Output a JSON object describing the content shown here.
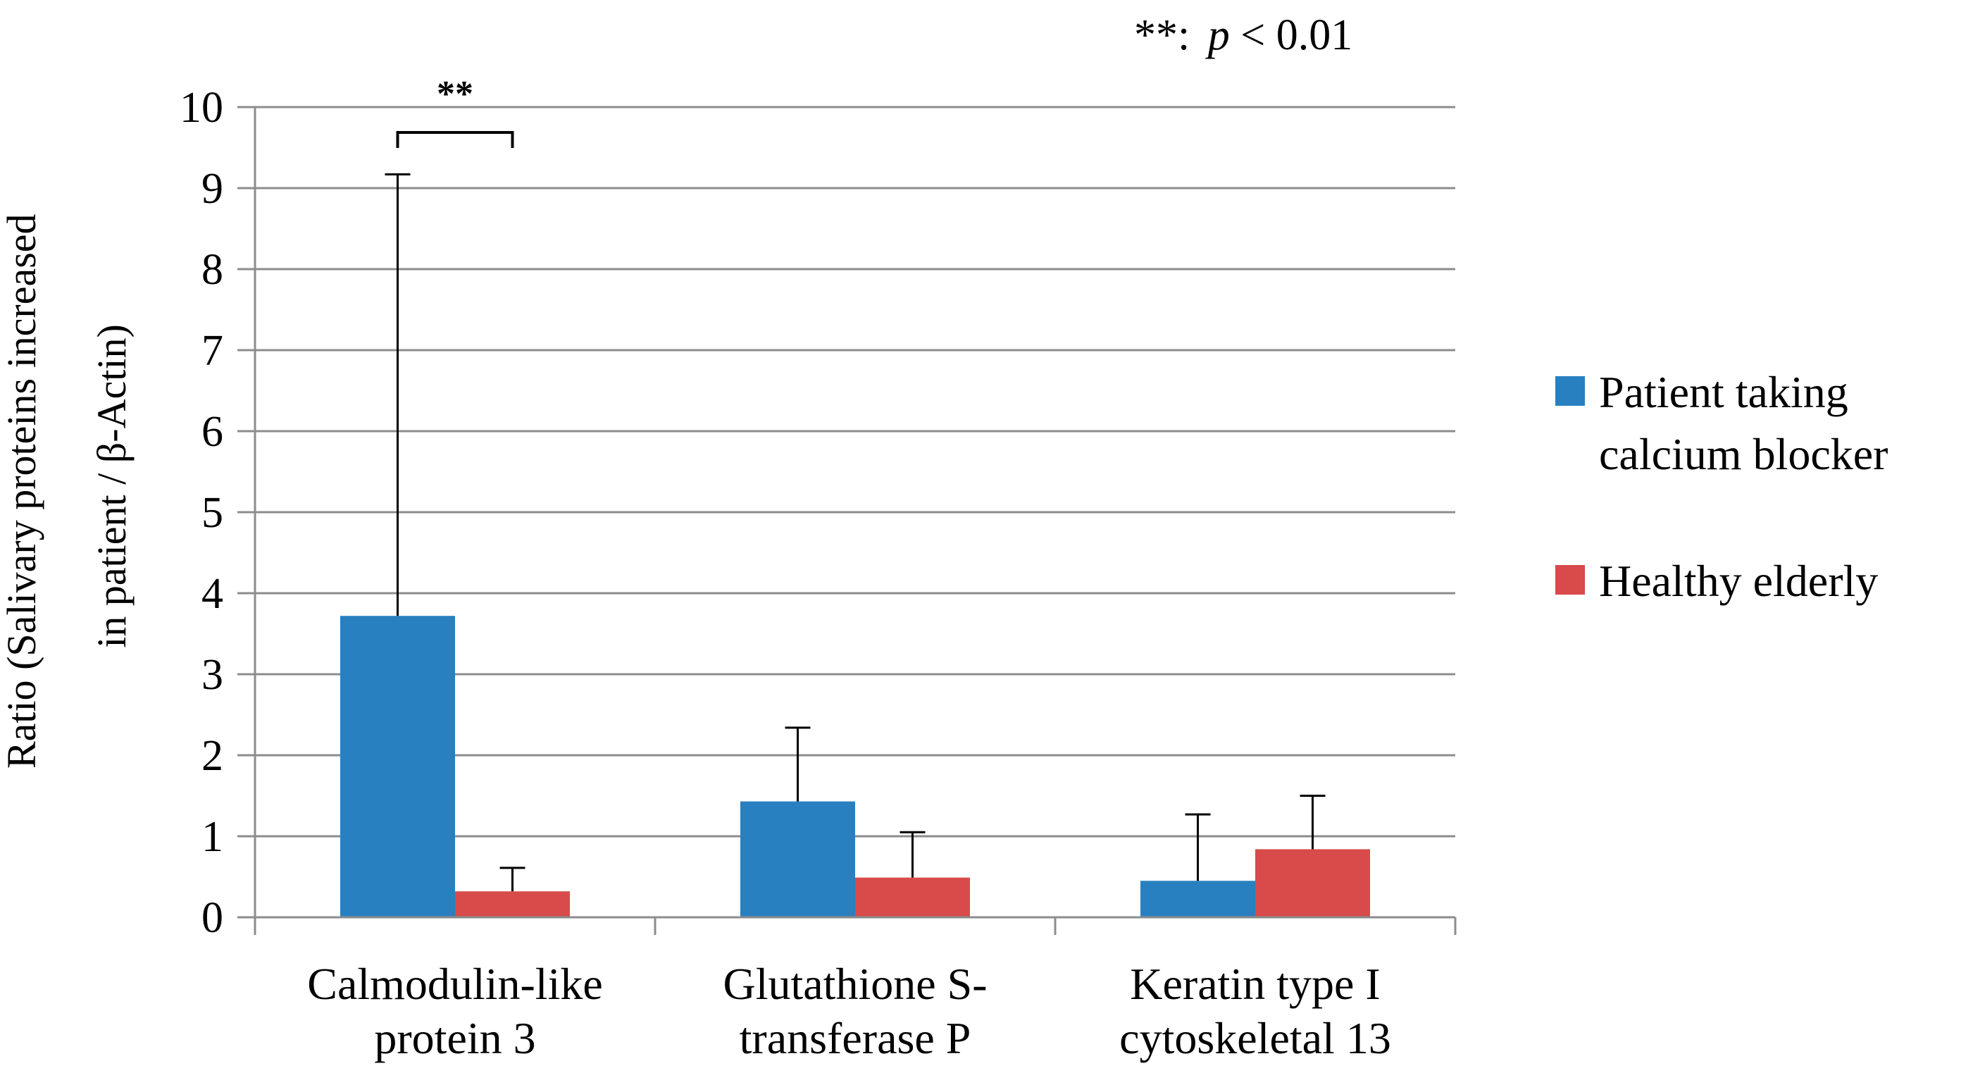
{
  "chart_data": {
    "type": "bar",
    "title": "",
    "annotation": {
      "stars": "**:",
      "p": "p",
      "rest": " < 0.01"
    },
    "ylabel_line1": "Ratio  (Salivary  proteins  increased",
    "ylabel_line2": "in patient / β-Actin)",
    "xlabel": "",
    "ylim": [
      0,
      10
    ],
    "ytick_step": 1,
    "yticks": [
      "0",
      "1",
      "2",
      "3",
      "4",
      "5",
      "6",
      "7",
      "8",
      "9",
      "10"
    ],
    "grid": true,
    "legend_position": "right",
    "categories": [
      [
        "Calmodulin-like",
        "protein 3"
      ],
      [
        "Glutathione S-",
        "transferase P"
      ],
      [
        "Keratin type I",
        "cytoskeletal 13"
      ]
    ],
    "series": [
      {
        "name_lines": [
          "Patient taking",
          "calcium blocker"
        ],
        "color": "#2980c0",
        "values": [
          3.72,
          1.43,
          0.45
        ],
        "errors": [
          5.45,
          0.91,
          0.82
        ]
      },
      {
        "name_lines": [
          "Healthy elderly"
        ],
        "color": "#d94a4a",
        "values": [
          0.32,
          0.49,
          0.84
        ],
        "errors": [
          0.29,
          0.56,
          0.66
        ]
      }
    ],
    "significance": [
      {
        "category": 0,
        "label": "**"
      }
    ]
  }
}
